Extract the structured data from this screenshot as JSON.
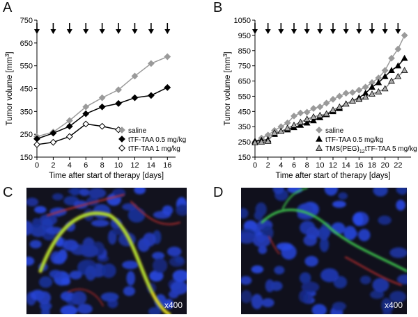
{
  "panels": {
    "a": "A",
    "b": "B",
    "c": "C",
    "d": "D"
  },
  "micro": {
    "c_magnification": "x400",
    "d_magnification": "x400"
  },
  "chart_data": [
    {
      "type": "line",
      "panel": "A",
      "title": "",
      "xlabel": "Time after start of therapy [days]",
      "ylabel": "Tumor volume [mm³]",
      "ylabel_base": "Tumor volume [mm",
      "ylabel_sup": "3",
      "ylabel_end": "]",
      "xlim": [
        0,
        17
      ],
      "ylim": [
        150,
        750
      ],
      "xticks": [
        0,
        2,
        4,
        6,
        8,
        10,
        12,
        14,
        16
      ],
      "yticks": [
        150,
        250,
        350,
        450,
        550,
        650,
        750
      ],
      "treatment_days": [
        0,
        2,
        4,
        6,
        8,
        10,
        12,
        14,
        16
      ],
      "legend_position": "right",
      "series": [
        {
          "name": "saline",
          "color": "#9a9a9a",
          "marker": "diamond-gray",
          "x": [
            0,
            2,
            4,
            6,
            8,
            10,
            12,
            14,
            16
          ],
          "y": [
            240,
            260,
            310,
            370,
            410,
            445,
            505,
            560,
            590
          ]
        },
        {
          "name": "tTF-TAA 0.5 mg/kg",
          "color": "#000000",
          "marker": "diamond-black",
          "x": [
            0,
            2,
            4,
            6,
            8,
            10,
            12,
            14,
            16
          ],
          "y": [
            230,
            255,
            285,
            340,
            370,
            385,
            410,
            420,
            455
          ]
        },
        {
          "name": "tTF-TAA 1 mg/kg",
          "color": "#000000",
          "marker": "diamond-white",
          "x": [
            0,
            2,
            4,
            6,
            8,
            10
          ],
          "y": [
            205,
            215,
            240,
            295,
            285,
            270
          ]
        }
      ]
    },
    {
      "type": "line",
      "panel": "B",
      "title": "",
      "xlabel": "Time after start of therapy [days]",
      "ylabel": "Tumor volume [mm³]",
      "ylabel_base": "Tumor volume [mm",
      "ylabel_sup": "3",
      "ylabel_end": "]",
      "xlim": [
        0,
        24
      ],
      "ylim": [
        150,
        1050
      ],
      "xticks": [
        0,
        2,
        4,
        6,
        8,
        10,
        12,
        14,
        16,
        18,
        20,
        22
      ],
      "yticks": [
        150,
        250,
        350,
        450,
        550,
        650,
        750,
        850,
        950,
        1050
      ],
      "treatment_days": [
        0,
        2,
        4,
        6,
        8,
        10,
        12,
        14,
        16,
        18,
        20,
        22
      ],
      "legend_position": "bottom-right",
      "series": [
        {
          "name": "saline",
          "color": "#9a9a9a",
          "marker": "diamond-gray",
          "x": [
            0,
            1,
            2,
            3,
            4,
            5,
            6,
            7,
            8,
            9,
            10,
            11,
            12,
            13,
            14,
            15,
            16,
            17,
            18,
            19,
            20,
            21,
            22,
            23
          ],
          "y": [
            250,
            275,
            295,
            325,
            350,
            375,
            420,
            440,
            445,
            470,
            480,
            505,
            530,
            550,
            570,
            575,
            590,
            610,
            640,
            670,
            720,
            800,
            860,
            950
          ]
        },
        {
          "name": "tTF-TAA 0.5 mg/kg",
          "color": "#000000",
          "marker": "triangle-black",
          "x": [
            0,
            1,
            2,
            3,
            4,
            5,
            6,
            7,
            8,
            9,
            10,
            11,
            12,
            13,
            14,
            15,
            16,
            17,
            18,
            19,
            20,
            21,
            22,
            23
          ],
          "y": [
            255,
            260,
            265,
            300,
            320,
            330,
            345,
            360,
            375,
            390,
            410,
            430,
            450,
            470,
            500,
            520,
            540,
            570,
            610,
            640,
            680,
            720,
            750,
            800
          ]
        },
        {
          "name": "TMS(PEG)₁₂tTF-TAA 5 mg/kg",
          "color": "#888888",
          "marker": "triangle-gray",
          "x": [
            0,
            1,
            2,
            3,
            4,
            5,
            6,
            7,
            8,
            9,
            10,
            11,
            12,
            13,
            14,
            15,
            16,
            17,
            18,
            19,
            20,
            21,
            22,
            23
          ],
          "y": [
            245,
            250,
            255,
            310,
            320,
            340,
            360,
            380,
            400,
            415,
            425,
            435,
            460,
            480,
            500,
            520,
            530,
            545,
            565,
            580,
            600,
            650,
            680,
            720
          ]
        }
      ],
      "legend_labels": [
        {
          "text": "saline"
        },
        {
          "text": "tTF-TAA 0.5 mg/kg"
        },
        {
          "pre": "TMS(PEG)",
          "sub": "12",
          "post": "tTF-TAA 5 mg/kg"
        }
      ]
    }
  ]
}
